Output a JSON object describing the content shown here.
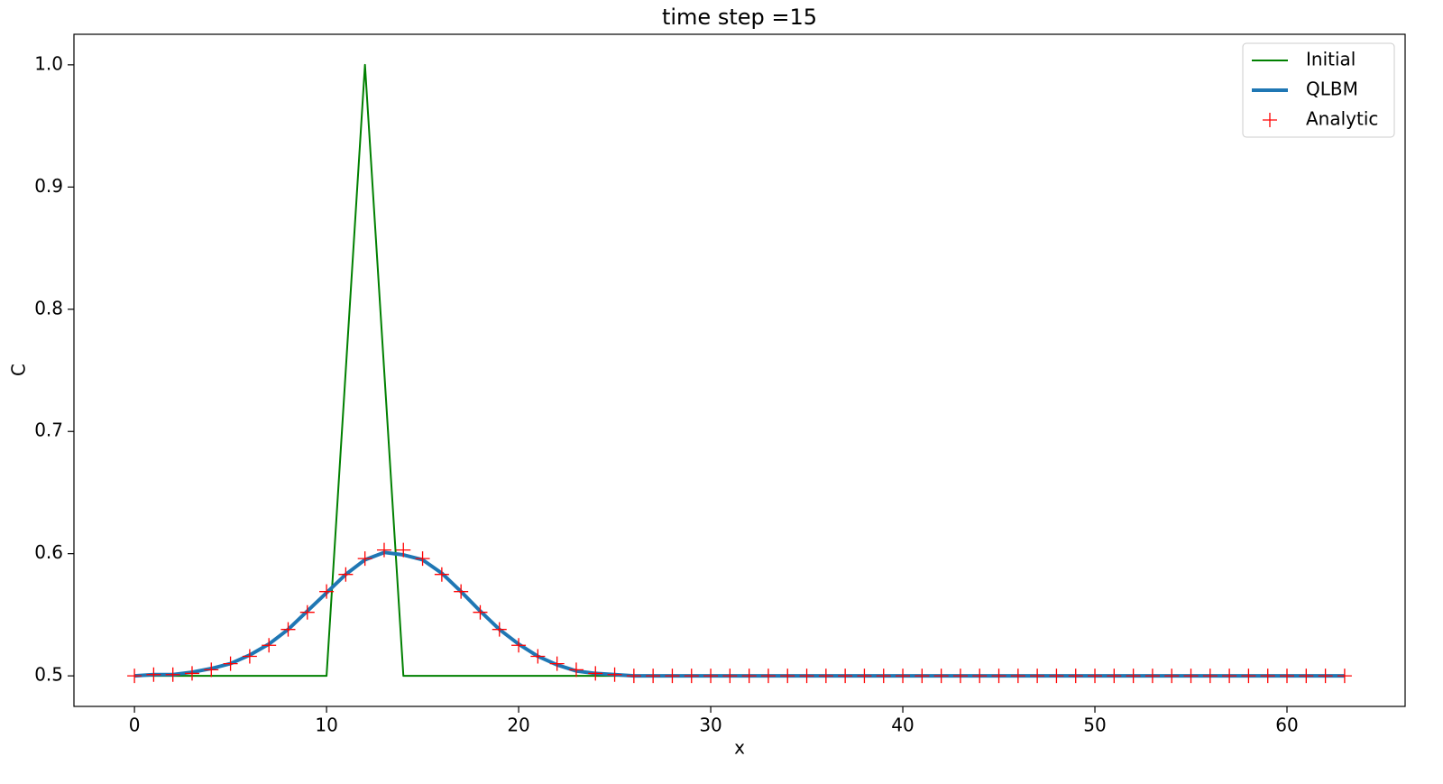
{
  "chart_data": {
    "type": "line",
    "title": "time step =15",
    "xlabel": "x",
    "ylabel": "C",
    "x": [
      0,
      1,
      2,
      3,
      4,
      5,
      6,
      7,
      8,
      9,
      10,
      11,
      12,
      13,
      14,
      15,
      16,
      17,
      18,
      19,
      20,
      21,
      22,
      23,
      24,
      25,
      26,
      27,
      28,
      29,
      30,
      31,
      32,
      33,
      34,
      35,
      36,
      37,
      38,
      39,
      40,
      41,
      42,
      43,
      44,
      45,
      46,
      47,
      48,
      49,
      50,
      51,
      52,
      53,
      54,
      55,
      56,
      57,
      58,
      59,
      60,
      61,
      62,
      63
    ],
    "series": [
      {
        "name": "Initial",
        "color": "#008000",
        "style": "line",
        "width": 2,
        "values": [
          0.5,
          0.5,
          0.5,
          0.5,
          0.5,
          0.5,
          0.5,
          0.5,
          0.5,
          0.5,
          0.5,
          0.75,
          1.0,
          0.75,
          0.5,
          0.5,
          0.5,
          0.5,
          0.5,
          0.5,
          0.5,
          0.5,
          0.5,
          0.5,
          0.5,
          0.5,
          0.5,
          0.5,
          0.5,
          0.5,
          0.5,
          0.5,
          0.5,
          0.5,
          0.5,
          0.5,
          0.5,
          0.5,
          0.5,
          0.5,
          0.5,
          0.5,
          0.5,
          0.5,
          0.5,
          0.5,
          0.5,
          0.5,
          0.5,
          0.5,
          0.5,
          0.5,
          0.5,
          0.5,
          0.5,
          0.5,
          0.5,
          0.5,
          0.5,
          0.5,
          0.5,
          0.5,
          0.5,
          0.5
        ]
      },
      {
        "name": "QLBM",
        "color": "#1f77b4",
        "style": "line",
        "width": 4,
        "values": [
          0.5,
          0.501,
          0.501,
          0.503,
          0.506,
          0.51,
          0.517,
          0.526,
          0.538,
          0.553,
          0.568,
          0.583,
          0.595,
          0.601,
          0.599,
          0.595,
          0.584,
          0.569,
          0.553,
          0.538,
          0.526,
          0.516,
          0.509,
          0.504,
          0.502,
          0.501,
          0.5,
          0.5,
          0.5,
          0.5,
          0.5,
          0.5,
          0.5,
          0.5,
          0.5,
          0.5,
          0.5,
          0.5,
          0.5,
          0.5,
          0.5,
          0.5,
          0.5,
          0.5,
          0.5,
          0.5,
          0.5,
          0.5,
          0.5,
          0.5,
          0.5,
          0.5,
          0.5,
          0.5,
          0.5,
          0.5,
          0.5,
          0.5,
          0.5,
          0.5,
          0.5,
          0.5,
          0.5,
          0.5
        ]
      },
      {
        "name": "Analytic",
        "color": "#ff0000",
        "style": "marker",
        "values": [
          0.5,
          0.501,
          0.501,
          0.502,
          0.505,
          0.51,
          0.516,
          0.525,
          0.538,
          0.552,
          0.569,
          0.583,
          0.596,
          0.603,
          0.603,
          0.596,
          0.583,
          0.569,
          0.552,
          0.538,
          0.525,
          0.516,
          0.51,
          0.505,
          0.502,
          0.501,
          0.5,
          0.5,
          0.5,
          0.5,
          0.5,
          0.5,
          0.5,
          0.5,
          0.5,
          0.5,
          0.5,
          0.5,
          0.5,
          0.5,
          0.5,
          0.5,
          0.5,
          0.5,
          0.5,
          0.5,
          0.5,
          0.5,
          0.5,
          0.5,
          0.5,
          0.5,
          0.5,
          0.5,
          0.5,
          0.5,
          0.5,
          0.5,
          0.5,
          0.5,
          0.5,
          0.5,
          0.5,
          0.5
        ]
      }
    ],
    "xlim": [
      -3.15,
      66.15
    ],
    "xticks": [
      0,
      10,
      20,
      30,
      40,
      50,
      60
    ],
    "ylim": [
      0.475,
      1.025
    ],
    "yticks": [
      0.5,
      0.6,
      0.7,
      0.8,
      0.9,
      {
        "value": 1,
        "label": "1.0"
      }
    ],
    "grid": false,
    "legend": "upper right"
  }
}
